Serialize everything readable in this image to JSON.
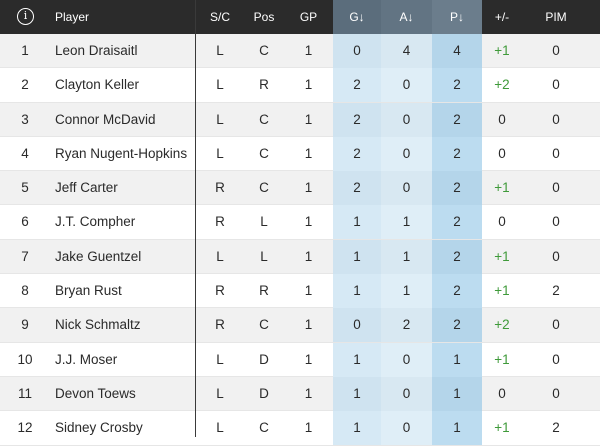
{
  "header": {
    "info": "i",
    "player": "Player",
    "sc": "S/C",
    "pos": "Pos",
    "gp": "GP",
    "g": "G↓",
    "a": "A↓",
    "p": "P↓",
    "pm": "+/-",
    "pim": "PIM"
  },
  "rows": [
    {
      "rank": "1",
      "player": "Leon Draisaitl",
      "sc": "L",
      "pos": "C",
      "gp": "1",
      "g": "0",
      "a": "4",
      "p": "4",
      "pm": "+1",
      "pim": "0"
    },
    {
      "rank": "2",
      "player": "Clayton Keller",
      "sc": "L",
      "pos": "R",
      "gp": "1",
      "g": "2",
      "a": "0",
      "p": "2",
      "pm": "+2",
      "pim": "0"
    },
    {
      "rank": "3",
      "player": "Connor McDavid",
      "sc": "L",
      "pos": "C",
      "gp": "1",
      "g": "2",
      "a": "0",
      "p": "2",
      "pm": "0",
      "pim": "0"
    },
    {
      "rank": "4",
      "player": "Ryan Nugent-Hopkins",
      "sc": "L",
      "pos": "C",
      "gp": "1",
      "g": "2",
      "a": "0",
      "p": "2",
      "pm": "0",
      "pim": "0"
    },
    {
      "rank": "5",
      "player": "Jeff Carter",
      "sc": "R",
      "pos": "C",
      "gp": "1",
      "g": "2",
      "a": "0",
      "p": "2",
      "pm": "+1",
      "pim": "0"
    },
    {
      "rank": "6",
      "player": "J.T. Compher",
      "sc": "R",
      "pos": "L",
      "gp": "1",
      "g": "1",
      "a": "1",
      "p": "2",
      "pm": "0",
      "pim": "0"
    },
    {
      "rank": "7",
      "player": "Jake Guentzel",
      "sc": "L",
      "pos": "L",
      "gp": "1",
      "g": "1",
      "a": "1",
      "p": "2",
      "pm": "+1",
      "pim": "0"
    },
    {
      "rank": "8",
      "player": "Bryan Rust",
      "sc": "R",
      "pos": "R",
      "gp": "1",
      "g": "1",
      "a": "1",
      "p": "2",
      "pm": "+1",
      "pim": "2"
    },
    {
      "rank": "9",
      "player": "Nick Schmaltz",
      "sc": "R",
      "pos": "C",
      "gp": "1",
      "g": "0",
      "a": "2",
      "p": "2",
      "pm": "+2",
      "pim": "0"
    },
    {
      "rank": "10",
      "player": "J.J. Moser",
      "sc": "L",
      "pos": "D",
      "gp": "1",
      "g": "1",
      "a": "0",
      "p": "1",
      "pm": "+1",
      "pim": "0"
    },
    {
      "rank": "11",
      "player": "Devon Toews",
      "sc": "L",
      "pos": "D",
      "gp": "1",
      "g": "1",
      "a": "0",
      "p": "1",
      "pm": "0",
      "pim": "0"
    },
    {
      "rank": "12",
      "player": "Sidney Crosby",
      "sc": "L",
      "pos": "C",
      "gp": "1",
      "g": "1",
      "a": "0",
      "p": "1",
      "pm": "+1",
      "pim": "2"
    }
  ]
}
